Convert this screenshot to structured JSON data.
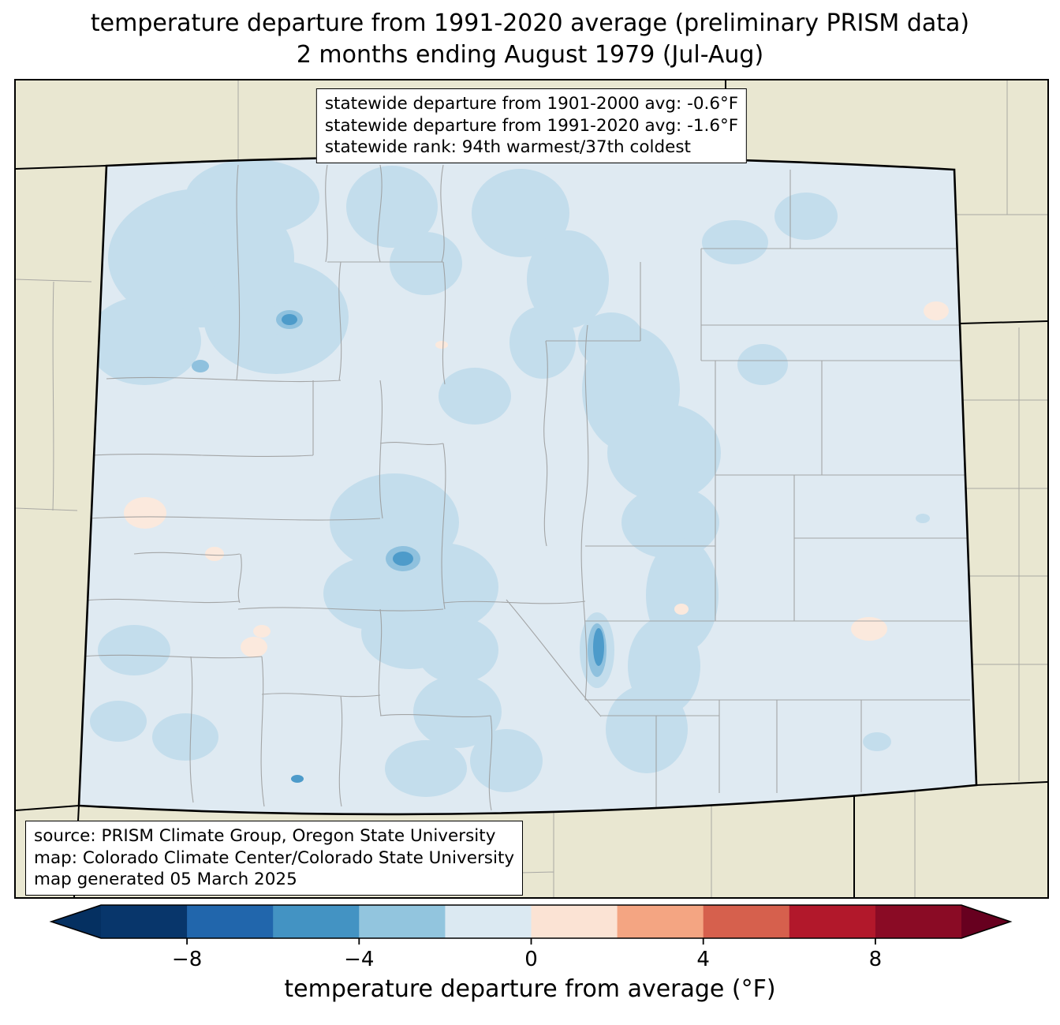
{
  "title": {
    "line1": "temperature departure from 1991-2020 average (preliminary PRISM data)",
    "line2": "2 months ending August 1979 (Jul-Aug)"
  },
  "stats_box": {
    "lines": [
      "statewide departure from 1901-2000 avg: -0.6°F",
      "statewide departure from 1991-2020 avg: -1.6°F",
      "statewide rank: 94th warmest/37th coldest"
    ]
  },
  "source_box": {
    "lines": [
      "source: PRISM Climate Group, Oregon State University",
      "map: Colorado Climate Center/Colorado State University",
      "map generated 05 March 2025"
    ]
  },
  "colorbar": {
    "label": "temperature departure from average (°F)",
    "range": [
      -10,
      10
    ],
    "ticks": [
      {
        "value": -8,
        "label": "−8"
      },
      {
        "value": -4,
        "label": "−4"
      },
      {
        "value": 0,
        "label": "0"
      },
      {
        "value": 4,
        "label": "4"
      },
      {
        "value": 8,
        "label": "8"
      }
    ],
    "segment_colors": [
      "#08366b",
      "#2166ac",
      "#4393c3",
      "#92c5de",
      "#dbe9f2",
      "#fbe3d4",
      "#f4a582",
      "#d6604d",
      "#b2182b",
      "#8a0b25"
    ],
    "arrow_left_color": "#053061",
    "arrow_right_color": "#67001f"
  },
  "map": {
    "region": "Colorado",
    "colors": {
      "land": "#e9e7d1",
      "state_base": "#dfeaf2",
      "anomaly_light": "#c3ddec",
      "anomaly_medium": "#8fc1de",
      "anomaly_dark": "#4d9bca",
      "anomaly_warm": "#fbe9dd",
      "county_line": "#999999",
      "state_line": "#000000"
    }
  }
}
